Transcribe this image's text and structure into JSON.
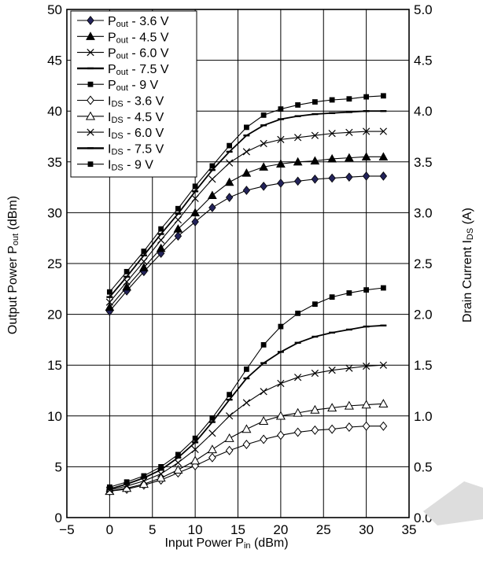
{
  "chart_data": {
    "type": "line",
    "x": [
      0,
      2,
      4,
      6,
      8,
      10,
      12,
      14,
      16,
      18,
      20,
      22,
      24,
      26,
      28,
      30,
      32
    ],
    "xlim": [
      -5,
      35
    ],
    "xticks": [
      "−5",
      "0",
      "5",
      "10",
      "15",
      "20",
      "25",
      "30",
      "35"
    ],
    "ylim_left": [
      0,
      50
    ],
    "yticks_left": [
      "0",
      "5",
      "10",
      "15",
      "20",
      "25",
      "30",
      "35",
      "40",
      "45",
      "50"
    ],
    "ylim_right": [
      0,
      5
    ],
    "yticks_right": [
      "0.0",
      "0.5",
      "1.0",
      "1.5",
      "2.0",
      "2.5",
      "3.0",
      "3.5",
      "4.0",
      "4.5",
      "5.0"
    ],
    "xlabel": {
      "main": "Input Power  P",
      "sub": "in",
      "unit": " (dBm)"
    },
    "ylabel_left": {
      "main": "Output Power  P",
      "sub": "out",
      "unit": " (dBm)"
    },
    "ylabel_right": {
      "main": "Drain Current  I",
      "sub": "DS",
      "unit": " (A)"
    },
    "grid": true,
    "legend_position": "top-left",
    "series": [
      {
        "name": "P",
        "sub": "out",
        "suffix": " - 3.6 V",
        "axis": "left",
        "marker": "diamond-filled",
        "values": [
          20.3,
          22.3,
          24.2,
          26.0,
          27.7,
          29.1,
          30.5,
          31.5,
          32.2,
          32.6,
          32.9,
          33.1,
          33.3,
          33.4,
          33.5,
          33.6,
          33.6
        ]
      },
      {
        "name": "P",
        "sub": "out",
        "suffix": " - 4.5 V",
        "axis": "left",
        "marker": "triangle-filled",
        "values": [
          20.7,
          22.7,
          24.6,
          26.5,
          28.4,
          30.0,
          31.7,
          33.0,
          33.9,
          34.5,
          34.8,
          35.0,
          35.1,
          35.3,
          35.4,
          35.5,
          35.5
        ]
      },
      {
        "name": "P",
        "sub": "out",
        "suffix": " - 6.0 V",
        "axis": "left",
        "marker": "x",
        "values": [
          21.2,
          23.2,
          25.2,
          27.3,
          29.3,
          31.4,
          33.3,
          34.9,
          36.0,
          36.8,
          37.2,
          37.4,
          37.6,
          37.8,
          37.9,
          38.0,
          38.0
        ]
      },
      {
        "name": "P",
        "sub": "out",
        "suffix": " - 7.5 V",
        "axis": "left",
        "marker": "dash",
        "values": [
          21.7,
          23.7,
          25.8,
          27.9,
          29.9,
          32.1,
          34.2,
          36.0,
          37.6,
          38.6,
          39.2,
          39.5,
          39.7,
          39.8,
          39.9,
          40.0,
          40.0
        ]
      },
      {
        "name": "P",
        "sub": "out",
        "suffix": " - 9 V",
        "axis": "left",
        "marker": "square-filled",
        "values": [
          22.2,
          24.2,
          26.2,
          28.4,
          30.4,
          32.6,
          34.6,
          36.6,
          38.4,
          39.6,
          40.2,
          40.6,
          40.9,
          41.1,
          41.2,
          41.4,
          41.5
        ]
      },
      {
        "name": "I",
        "sub": "DS",
        "suffix": " - 3.6 V",
        "axis": "right",
        "marker": "diamond-open",
        "values": [
          0.26,
          0.28,
          0.32,
          0.37,
          0.44,
          0.51,
          0.59,
          0.66,
          0.72,
          0.77,
          0.81,
          0.84,
          0.86,
          0.87,
          0.89,
          0.9,
          0.9
        ]
      },
      {
        "name": "I",
        "sub": "DS",
        "suffix": " - 4.5 V",
        "axis": "right",
        "marker": "triangle-open",
        "values": [
          0.26,
          0.29,
          0.33,
          0.39,
          0.47,
          0.56,
          0.67,
          0.78,
          0.87,
          0.95,
          1.0,
          1.03,
          1.06,
          1.08,
          1.1,
          1.11,
          1.12
        ]
      },
      {
        "name": "I",
        "sub": "DS",
        "suffix": " - 6.0 V",
        "axis": "right",
        "marker": "x",
        "values": [
          0.27,
          0.31,
          0.36,
          0.43,
          0.54,
          0.67,
          0.83,
          1.0,
          1.13,
          1.24,
          1.32,
          1.38,
          1.42,
          1.45,
          1.47,
          1.49,
          1.5
        ]
      },
      {
        "name": "I",
        "sub": "DS",
        "suffix": " - 7.5 V",
        "axis": "right",
        "marker": "dash",
        "values": [
          0.28,
          0.33,
          0.39,
          0.47,
          0.59,
          0.74,
          0.94,
          1.16,
          1.37,
          1.52,
          1.63,
          1.72,
          1.78,
          1.82,
          1.85,
          1.88,
          1.89
        ]
      },
      {
        "name": "I",
        "sub": "DS",
        "suffix": " - 9 V",
        "axis": "right",
        "marker": "square-filled",
        "values": [
          0.3,
          0.35,
          0.41,
          0.5,
          0.62,
          0.78,
          0.98,
          1.21,
          1.46,
          1.7,
          1.88,
          2.01,
          2.1,
          2.17,
          2.21,
          2.24,
          2.26
        ]
      }
    ]
  }
}
